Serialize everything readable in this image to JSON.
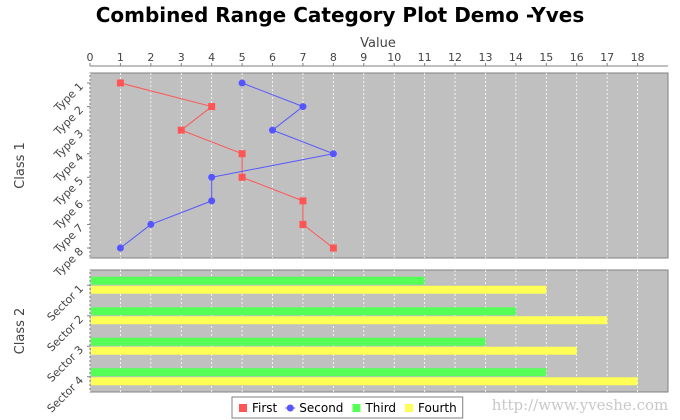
{
  "chart_data": {
    "type": "combined-category",
    "title": "Combined Range Category Plot Demo -Yves",
    "value_axis": {
      "label": "Value",
      "range": [
        0,
        19
      ],
      "ticks": [
        0,
        1,
        2,
        3,
        4,
        5,
        6,
        7,
        8,
        9,
        10,
        11,
        12,
        13,
        14,
        15,
        16,
        17,
        18
      ]
    },
    "subplots": [
      {
        "type": "line",
        "label": "Class 1",
        "categories": [
          "Type 1",
          "Type 2",
          "Type 3",
          "Type 4",
          "Type 5",
          "Type 6",
          "Type 7",
          "Type 8"
        ],
        "series": [
          {
            "name": "First",
            "color": "#ff5555",
            "marker": "square",
            "values": [
              1,
              4,
              3,
              5,
              5,
              7,
              7,
              8
            ]
          },
          {
            "name": "Second",
            "color": "#5555ff",
            "marker": "circle",
            "values": [
              5,
              7,
              6,
              8,
              4,
              4,
              2,
              1
            ]
          }
        ]
      },
      {
        "type": "bar",
        "label": "Class 2",
        "categories": [
          "Sector 1",
          "Sector 2",
          "Sector 3",
          "Sector 4"
        ],
        "series": [
          {
            "name": "Third",
            "color": "#55ff55",
            "values": [
              11,
              14,
              13,
              15
            ]
          },
          {
            "name": "Fourth",
            "color": "#ffff55",
            "values": [
              15,
              17,
              16,
              18
            ]
          }
        ]
      }
    ],
    "grid": true,
    "legend": {
      "position": "bottom",
      "items": [
        {
          "name": "First",
          "color": "#ff5555",
          "marker": "square"
        },
        {
          "name": "Second",
          "color": "#5555ff",
          "marker": "circle"
        },
        {
          "name": "Third",
          "color": "#55ff55",
          "marker": "square"
        },
        {
          "name": "Fourth",
          "color": "#ffff55",
          "marker": "square"
        }
      ]
    },
    "watermark": "http://www.yveshe.com"
  }
}
